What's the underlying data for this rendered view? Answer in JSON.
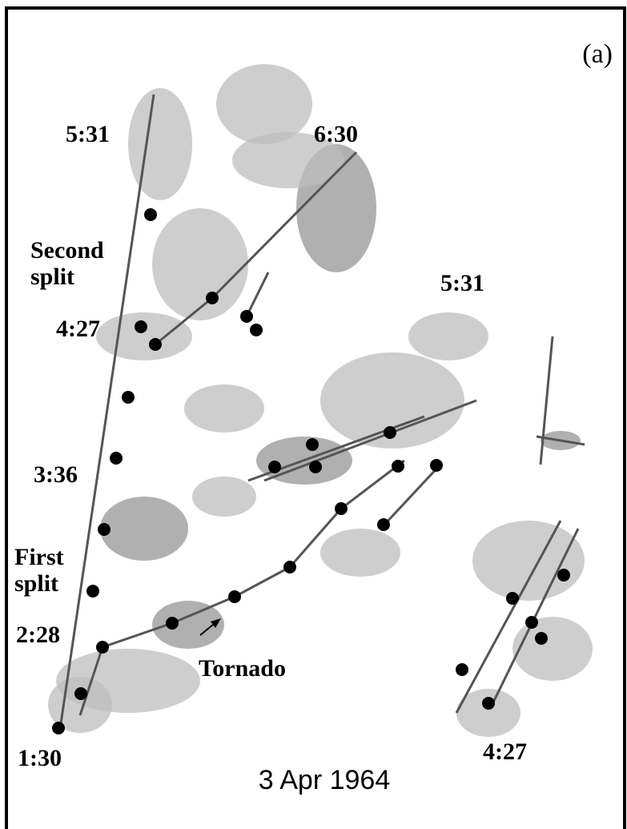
{
  "figure": {
    "panel": "(a)",
    "labels": [
      "5:31",
      "6:30",
      "Second split",
      "4:27",
      "5:31",
      "3:36",
      "First split",
      "2:28",
      "Tornado",
      "1:30",
      "4:27"
    ],
    "caption": "3 Apr 1964"
  }
}
